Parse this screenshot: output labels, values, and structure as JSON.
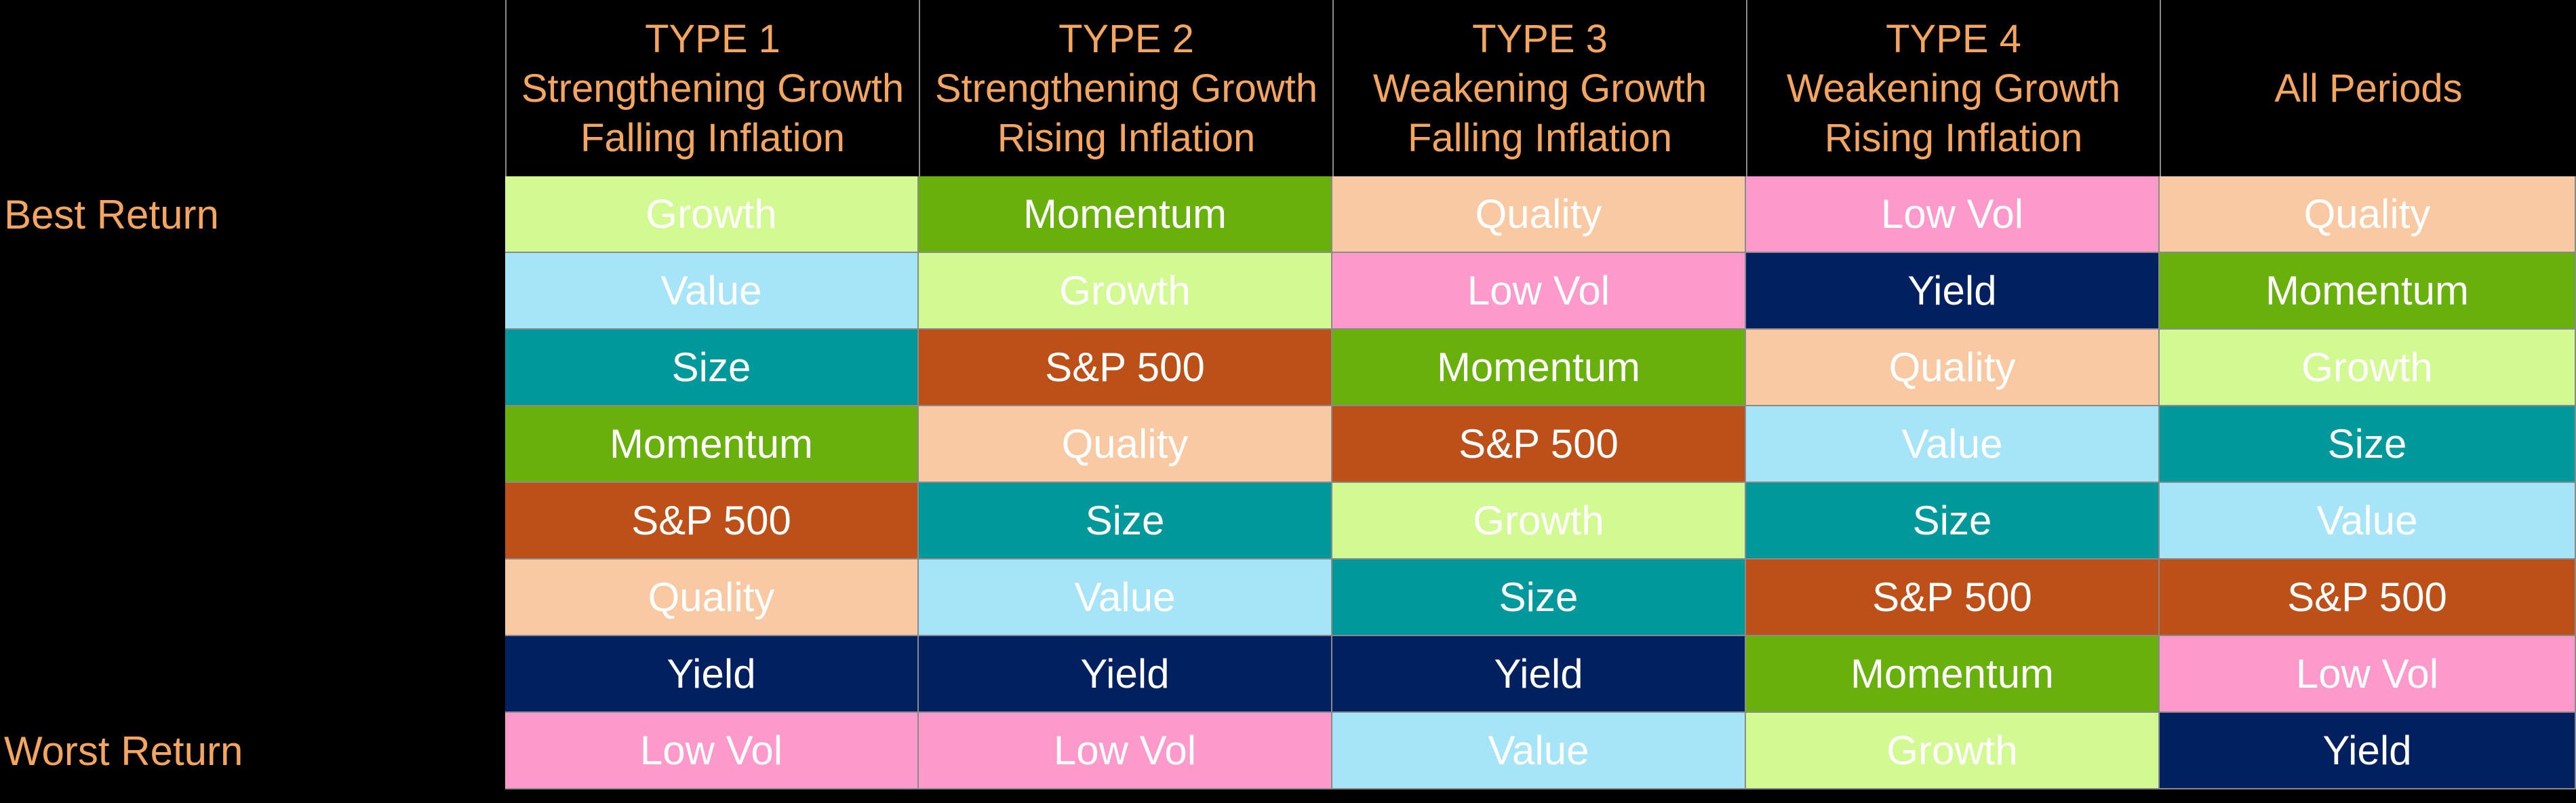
{
  "colors": {
    "background": "#000000",
    "header_text": "#f4a661",
    "cell_text": "#ffffff"
  },
  "factor_colors": {
    "Growth": "#d3f992",
    "Value": "#a6e5f7",
    "Size": "#00999b",
    "Momentum": "#68b00b",
    "S&P 500": "#bd5018",
    "Quality": "#f8c9a2",
    "Yield": "#002060",
    "Low Vol": "#fe99cc"
  },
  "row_labels": [
    "Best Return",
    "",
    "",
    "",
    "",
    "",
    "",
    "Worst Return"
  ],
  "columns": [
    {
      "header_lines": [
        "TYPE 1",
        "Strengthening Growth",
        "Falling Inflation"
      ],
      "ranking": [
        "Growth",
        "Value",
        "Size",
        "Momentum",
        "S&P 500",
        "Quality",
        "Yield",
        "Low Vol"
      ]
    },
    {
      "header_lines": [
        "TYPE 2",
        "Strengthening Growth",
        "Rising Inflation"
      ],
      "ranking": [
        "Momentum",
        "Growth",
        "S&P 500",
        "Quality",
        "Size",
        "Value",
        "Yield",
        "Low Vol"
      ]
    },
    {
      "header_lines": [
        "TYPE 3",
        "Weakening Growth",
        "Falling Inflation"
      ],
      "ranking": [
        "Quality",
        "Low Vol",
        "Momentum",
        "S&P 500",
        "Growth",
        "Size",
        "Yield",
        "Value"
      ]
    },
    {
      "header_lines": [
        "TYPE 4",
        "Weakening Growth",
        "Rising Inflation"
      ],
      "ranking": [
        "Low Vol",
        "Yield",
        "Quality",
        "Value",
        "Size",
        "S&P 500",
        "Momentum",
        "Growth"
      ]
    },
    {
      "header_lines": [
        "All Periods"
      ],
      "ranking": [
        "Quality",
        "Momentum",
        "Growth",
        "Size",
        "Value",
        "S&P 500",
        "Low Vol",
        "Yield"
      ]
    }
  ]
}
